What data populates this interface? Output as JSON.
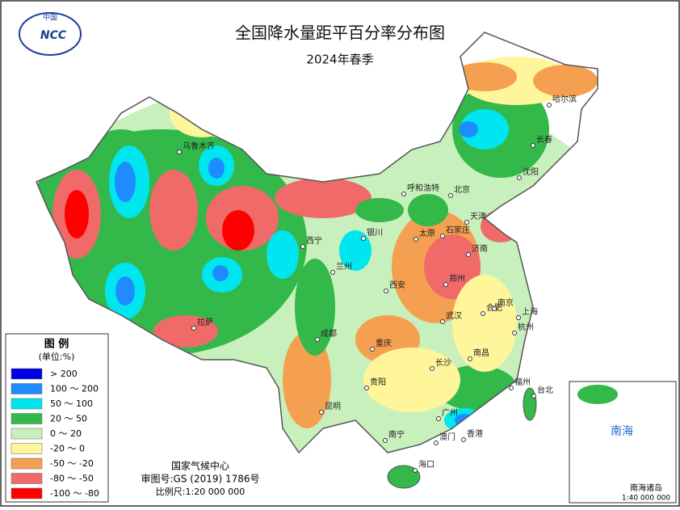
{
  "header": {
    "title": "全国降水量距平百分率分布图",
    "subtitle": "2024年春季",
    "logo_top": "中国",
    "logo": "NCC"
  },
  "legend": {
    "title": "图 例",
    "unit": "(单位:%)",
    "items": [
      {
        "label": "> 200",
        "color": "#0000e6"
      },
      {
        "label": "100 ～ 200",
        "color": "#1e8cff"
      },
      {
        "label": "50 ～ 100",
        "color": "#00e6f0"
      },
      {
        "label": "20 ～ 50",
        "color": "#33b84a"
      },
      {
        "label": "0 ～ 20",
        "color": "#c8f0bc"
      },
      {
        "label": "-20 ～ 0",
        "color": "#fff59a"
      },
      {
        "label": "-50 ～ -20",
        "color": "#f5a050"
      },
      {
        "label": "-80 ～ -50",
        "color": "#f06a6a"
      },
      {
        "label": "-100 ～ -80",
        "color": "#ff0000"
      }
    ]
  },
  "cities": [
    "乌鲁木齐",
    "拉萨",
    "西宁",
    "兰州",
    "银川",
    "呼和浩特",
    "北京",
    "天津",
    "石家庄",
    "太原",
    "济南",
    "郑州",
    "西安",
    "成都",
    "重庆",
    "武汉",
    "合肥",
    "南京",
    "上海",
    "杭州",
    "长沙",
    "南昌",
    "福州",
    "贵阳",
    "昆明",
    "南宁",
    "广州",
    "香港",
    "澳门",
    "海口",
    "台北",
    "哈尔滨",
    "长春",
    "沈阳"
  ],
  "footer": {
    "agency": "国家气候中心",
    "approval": "审图号:GS (2019) 1786号",
    "scale": "比例尺:1:20 000 000"
  },
  "inset": {
    "label": "南海",
    "islands": "南海诸岛",
    "scale": "1:40 000 000"
  }
}
